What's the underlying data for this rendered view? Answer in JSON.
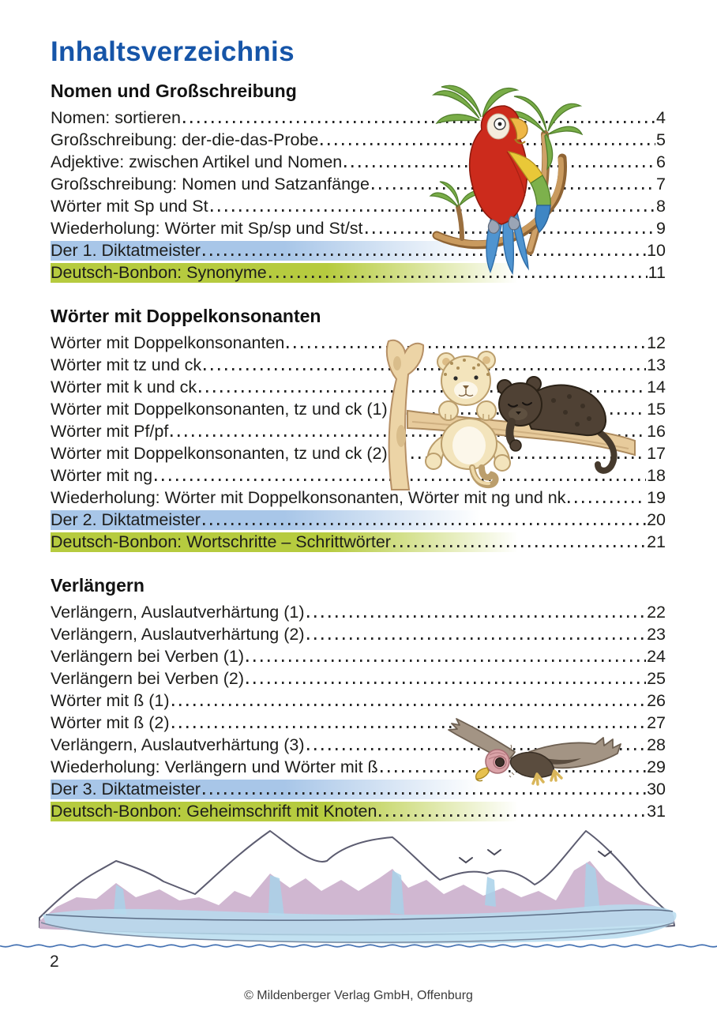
{
  "page": {
    "title": "Inhaltsverzeichnis",
    "page_number": "2",
    "copyright": "© Mildenberger Verlag GmbH, Offenburg"
  },
  "colors": {
    "title_blue": "#1655a8",
    "highlight_blue": "#a8c6e8",
    "highlight_green": "#b6cb3f",
    "wave_line_blue": "#3767ad"
  },
  "illustrations": [
    "parrot-on-palm-branch",
    "leopard-and-panther-cubs-on-branch",
    "flying-vulture",
    "snowy-mountains-with-birds"
  ],
  "sections": [
    {
      "heading": "Nomen und Großschreibung",
      "items": [
        {
          "label": "Nomen: sortieren",
          "page": "4",
          "highlight": "none"
        },
        {
          "label": "Großschreibung: der-die-das-Probe",
          "page": "5",
          "highlight": "none"
        },
        {
          "label": "Adjektive: zwischen Artikel und Nomen",
          "page": "6",
          "highlight": "none"
        },
        {
          "label": "Großschreibung: Nomen und Satzanfänge",
          "page": "7",
          "highlight": "none"
        },
        {
          "label": "Wörter mit Sp und St",
          "page": "8",
          "highlight": "none"
        },
        {
          "label": "Wiederholung: Wörter mit Sp/sp und St/st",
          "page": "9",
          "highlight": "none"
        },
        {
          "label": "Der 1. Diktatmeister",
          "page": "10",
          "highlight": "blue"
        },
        {
          "label": "Deutsch-Bonbon: Synonyme",
          "page": "11",
          "highlight": "green"
        }
      ]
    },
    {
      "heading": "Wörter mit Doppelkonsonanten",
      "items": [
        {
          "label": "Wörter mit Doppelkonsonanten",
          "page": "12",
          "highlight": "none"
        },
        {
          "label": "Wörter mit tz und ck",
          "page": "13",
          "highlight": "none"
        },
        {
          "label": "Wörter mit k und ck",
          "page": "14",
          "highlight": "none"
        },
        {
          "label": "Wörter mit Doppelkonsonanten, tz und ck (1)",
          "page": "15",
          "highlight": "none"
        },
        {
          "label": "Wörter mit Pf/pf",
          "page": "16",
          "highlight": "none"
        },
        {
          "label": "Wörter mit Doppelkonsonanten, tz und ck (2)",
          "page": "17",
          "highlight": "none"
        },
        {
          "label": "Wörter mit ng",
          "page": "18",
          "highlight": "none"
        },
        {
          "label": "Wiederholung: Wörter mit Doppelkonsonanten, Wörter mit ng und nk",
          "page": "19",
          "highlight": "none"
        },
        {
          "label": "Der 2. Diktatmeister",
          "page": "20",
          "highlight": "blue"
        },
        {
          "label": "Deutsch-Bonbon: Wortschritte – Schrittwörter",
          "page": "21",
          "highlight": "green"
        }
      ]
    },
    {
      "heading": "Verlängern",
      "items": [
        {
          "label": "Verlängern, Auslautverhärtung (1)",
          "page": "22",
          "highlight": "none"
        },
        {
          "label": "Verlängern, Auslautverhärtung (2)",
          "page": "23",
          "highlight": "none"
        },
        {
          "label": "Verlängern bei Verben (1)",
          "page": "24",
          "highlight": "none"
        },
        {
          "label": "Verlängern bei Verben (2)",
          "page": "25",
          "highlight": "none"
        },
        {
          "label": "Wörter mit ß (1)",
          "page": "26",
          "highlight": "none"
        },
        {
          "label": "Wörter mit ß (2)",
          "page": "27",
          "highlight": "none"
        },
        {
          "label": "Verlängern, Auslautverhärtung (3)",
          "page": "28",
          "highlight": "none"
        },
        {
          "label": "Wiederholung: Verlängern und Wörter mit ß",
          "page": "29",
          "highlight": "none"
        },
        {
          "label": "Der 3. Diktatmeister",
          "page": "30",
          "highlight": "blue"
        },
        {
          "label": "Deutsch-Bonbon: Geheimschrift mit Knoten",
          "page": "31",
          "highlight": "green"
        }
      ]
    }
  ]
}
